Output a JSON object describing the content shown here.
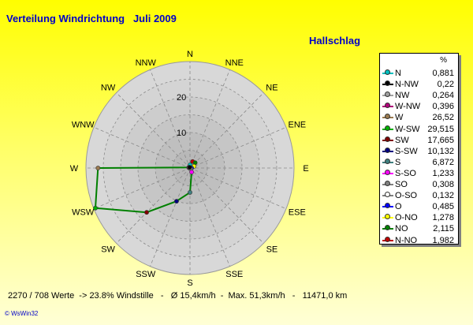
{
  "title": "Verteilung Windrichtung   Juli 2009",
  "station": "Hallschlag",
  "footer": "2270 / 708 Werte  -> 23.8% Windstille   -   Ø 15,4km/h  -  Max. 51,3km/h   -   11471,0 km",
  "credit": "© WsWin32",
  "legend_header": "%",
  "chart_data": {
    "type": "radar",
    "title": "Verteilung Windrichtung   Juli 2009",
    "directions": [
      "N",
      "NNE",
      "NE",
      "ENE",
      "E",
      "ESE",
      "SE",
      "SSE",
      "S",
      "SSW",
      "SW",
      "WSW",
      "W",
      "WNW",
      "NW",
      "NNW"
    ],
    "rings": [
      10,
      20
    ],
    "rmax": 30,
    "series": [
      {
        "name": "N",
        "value": 0.881,
        "color": "#00c0c0",
        "direction": "N"
      },
      {
        "name": "N-NW",
        "value": 0.22,
        "color": "#000000",
        "direction": "NNW"
      },
      {
        "name": "NW",
        "value": 0.264,
        "color": "#a0a0a0",
        "direction": "NW"
      },
      {
        "name": "W-NW",
        "value": 0.396,
        "color": "#b0007a",
        "direction": "WNW"
      },
      {
        "name": "W",
        "value": 26.52,
        "color": "#9a7a50",
        "direction": "W"
      },
      {
        "name": "W-SW",
        "value": 29.515,
        "color": "#00b000",
        "direction": "WSW"
      },
      {
        "name": "SW",
        "value": 17.665,
        "color": "#800000",
        "direction": "SW"
      },
      {
        "name": "S-SW",
        "value": 10.132,
        "color": "#000080",
        "direction": "SSW"
      },
      {
        "name": "S",
        "value": 6.872,
        "color": "#408080",
        "direction": "S"
      },
      {
        "name": "S-SO",
        "value": 1.233,
        "color": "#ff00ff",
        "direction": "SSE"
      },
      {
        "name": "SO",
        "value": 0.308,
        "color": "#808080",
        "direction": "SE"
      },
      {
        "name": "O-SO",
        "value": 0.132,
        "color": "#ffffff",
        "direction": "ESE"
      },
      {
        "name": "O",
        "value": 0.485,
        "color": "#0000ff",
        "direction": "E"
      },
      {
        "name": "O-NO",
        "value": 1.278,
        "color": "#ffff00",
        "direction": "ENE"
      },
      {
        "name": "NO",
        "value": 2.115,
        "color": "#008000",
        "direction": "NE"
      },
      {
        "name": "N-NO",
        "value": 1.982,
        "color": "#c00000",
        "direction": "NNE"
      }
    ]
  },
  "colors": {
    "polygon_line": "#008000",
    "ring_outer": "#d8d8d8",
    "ring_inner": "#c8c8c8",
    "grid": "#8a8a8a",
    "text_blue": "#0000c8"
  }
}
